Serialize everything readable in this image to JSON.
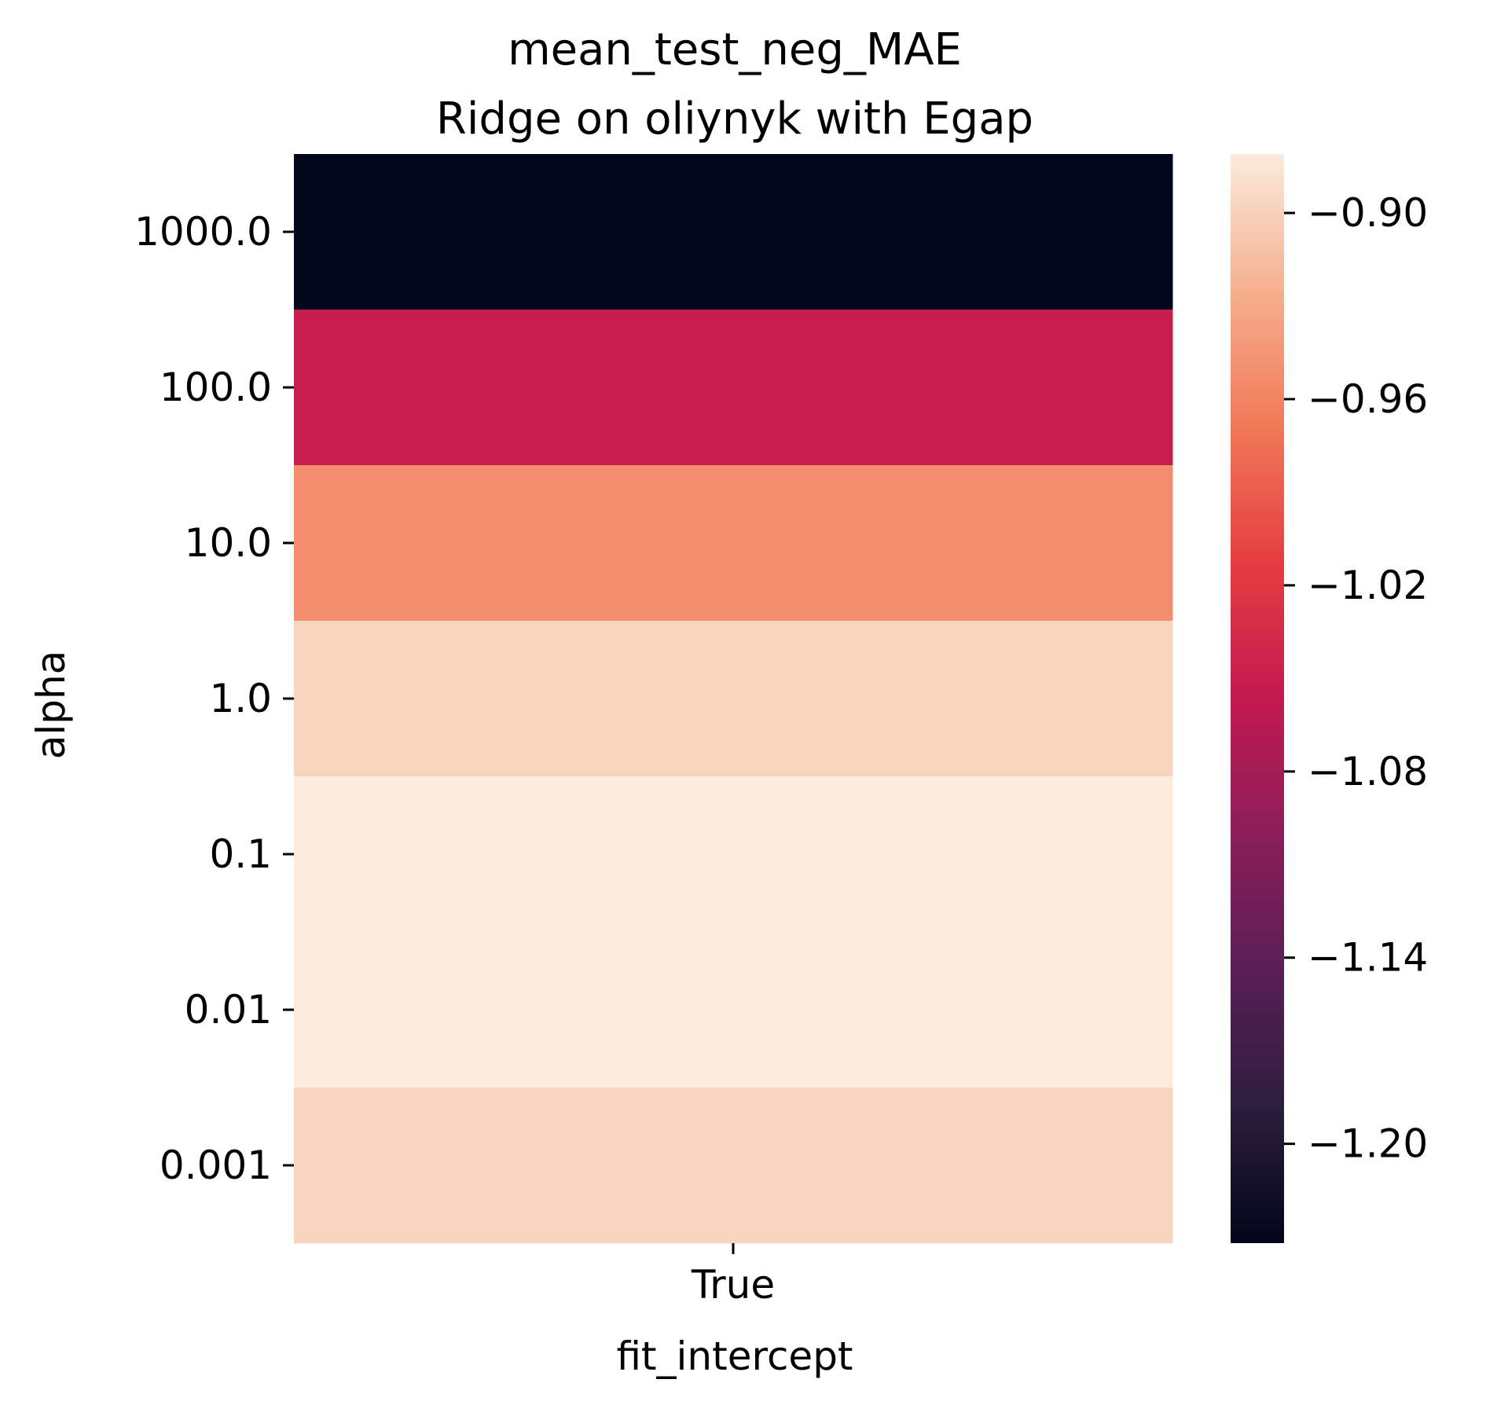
{
  "chart_data": {
    "type": "heatmap",
    "title": "mean_test_neg_MAE",
    "subtitle": "Ridge on oliynyk with Egap",
    "xlabel": "fit_intercept",
    "ylabel": "alpha",
    "x_categories": [
      "True"
    ],
    "y_categories": [
      "1000.0",
      "100.0",
      "10.0",
      "1.0",
      "0.1",
      "0.01",
      "0.001"
    ],
    "values": [
      [
        -1.232
      ],
      [
        -1.053
      ],
      [
        -0.952
      ],
      [
        -0.898
      ],
      [
        -0.881
      ],
      [
        -0.881
      ],
      [
        -0.897
      ]
    ],
    "colormap": "rocket",
    "colorbar": {
      "vmin": -1.232,
      "vmax": -0.881,
      "ticks": [
        -0.9,
        -0.96,
        -1.02,
        -1.08,
        -1.14,
        -1.2
      ],
      "tick_labels": [
        "−0.90",
        "−0.96",
        "−1.02",
        "−1.08",
        "−1.14",
        "−1.20"
      ]
    },
    "grid": false,
    "legend": "colorbar-right"
  }
}
